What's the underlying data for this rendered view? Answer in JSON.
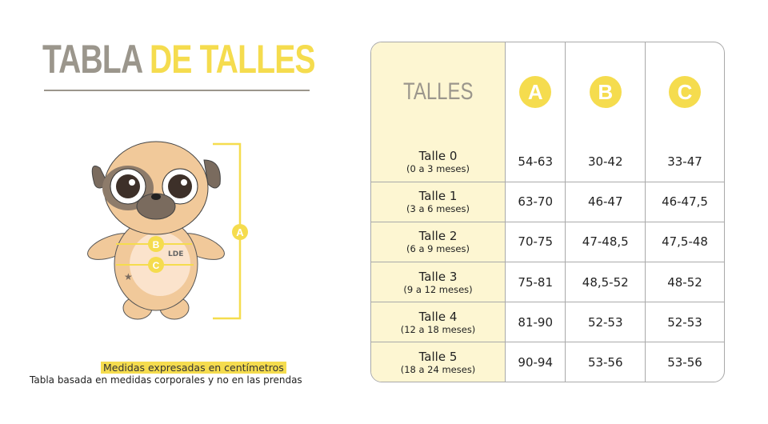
{
  "title": {
    "part1": "TABLA",
    "part2": "DE TALLES"
  },
  "figure": {
    "labels": {
      "a": "A",
      "b": "B",
      "c": "C"
    },
    "logo": "LDE"
  },
  "notes": {
    "units": "Medidas expresadas en centímetros",
    "basis": "Tabla basada en medidas corporales y no en las prendas"
  },
  "table": {
    "header": {
      "label": "TALLES",
      "cols": [
        "A",
        "B",
        "C"
      ]
    },
    "rows": [
      {
        "size": "Talle 0",
        "age": "(0 a 3 meses)",
        "values": [
          "54-63",
          "30-42",
          "33-47"
        ]
      },
      {
        "size": "Talle 1",
        "age": "(3 a 6 meses)",
        "values": [
          "63-70",
          "46-47",
          "46-47,5"
        ]
      },
      {
        "size": "Talle 2",
        "age": "(6 a 9 meses)",
        "values": [
          "70-75",
          "47-48,5",
          "47,5-48"
        ]
      },
      {
        "size": "Talle 3",
        "age": "(9 a 12 meses)",
        "values": [
          "75-81",
          "48,5-52",
          "48-52"
        ]
      },
      {
        "size": "Talle 4",
        "age": "(12 a 18 meses)",
        "values": [
          "81-90",
          "52-53",
          "52-53"
        ]
      },
      {
        "size": "Talle 5",
        "age": "(18 a 24 meses)",
        "values": [
          "90-94",
          "53-56",
          "53-56"
        ]
      }
    ]
  },
  "colors": {
    "accent": "#f5dc4e",
    "gray": "#9b968c",
    "cream": "#fdf6d2"
  }
}
